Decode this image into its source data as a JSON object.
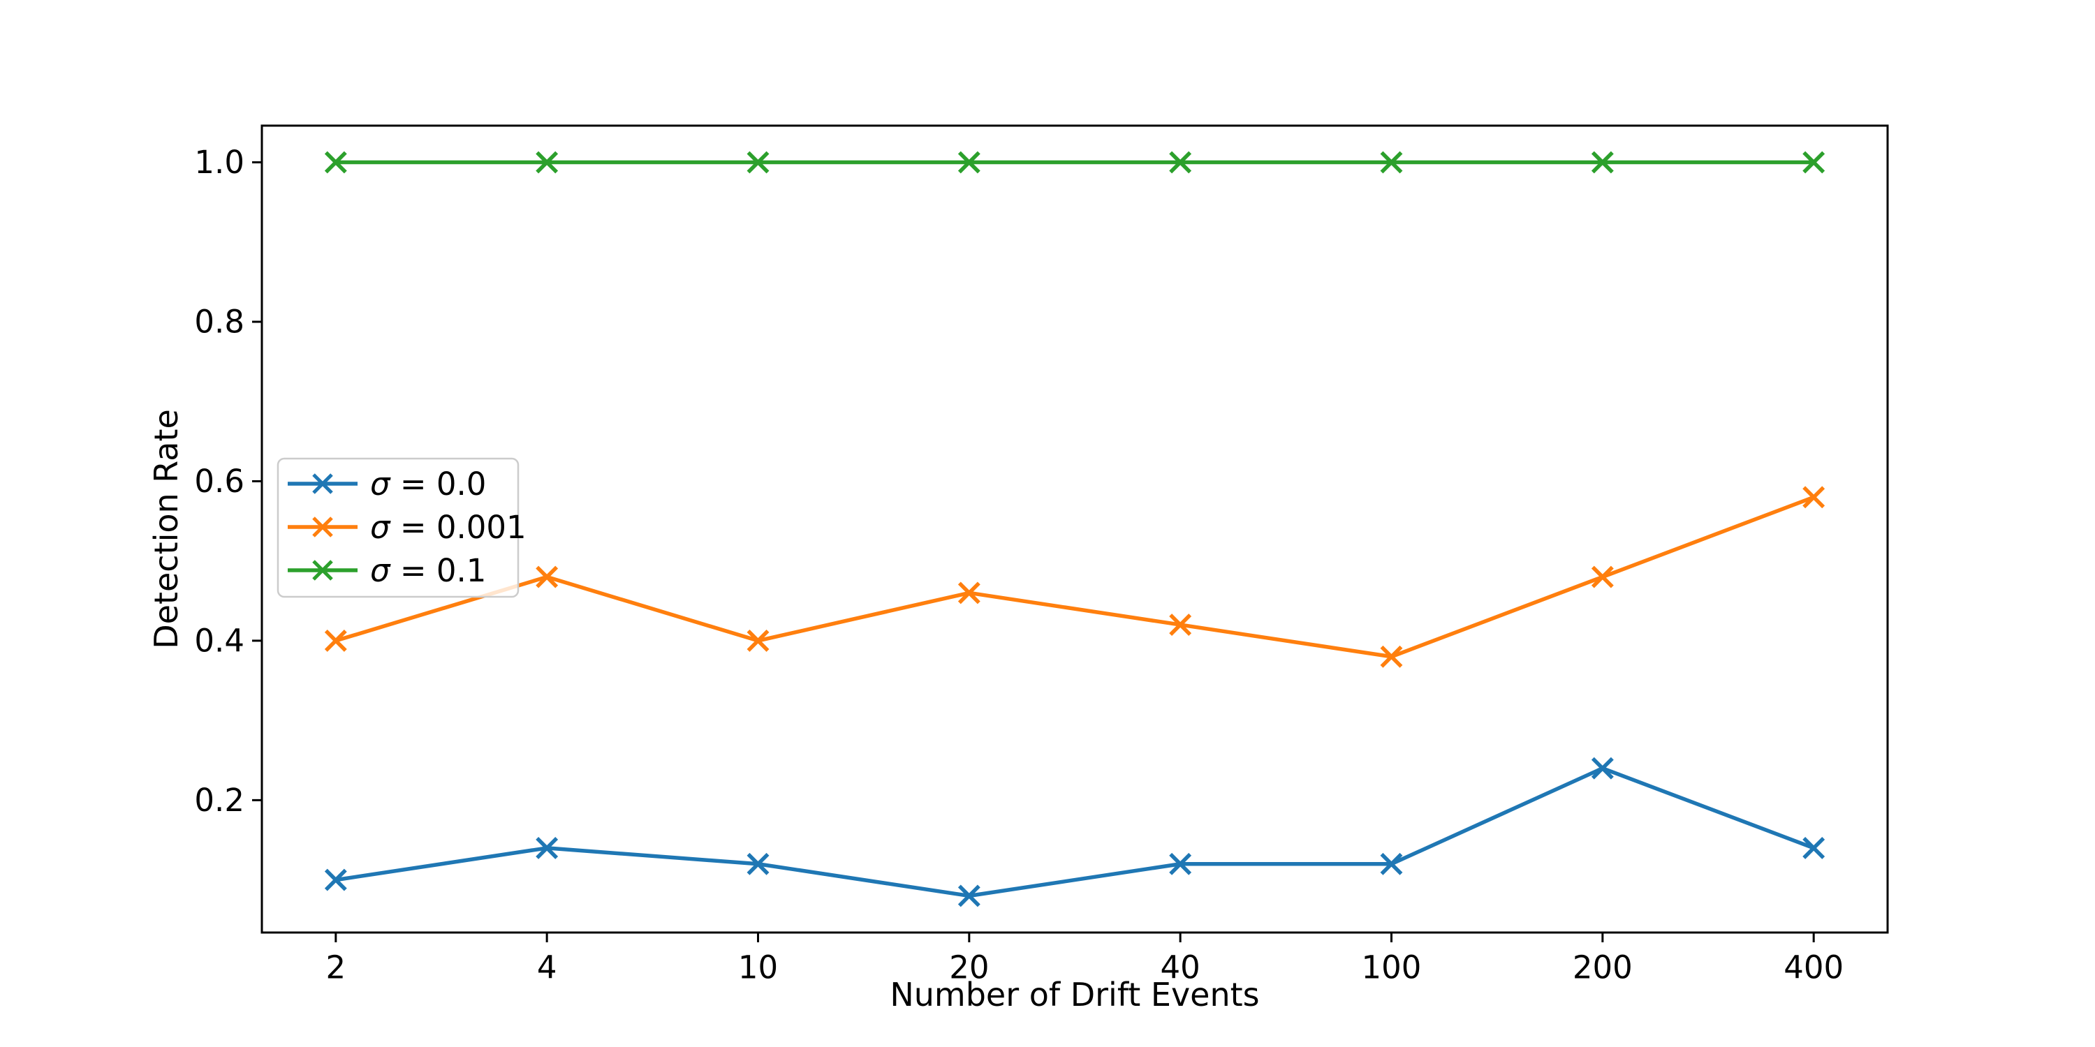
{
  "figure": {
    "background": "#ffffff",
    "text_color": "#000000",
    "axis_color": "#000000"
  },
  "chart_data": {
    "type": "line",
    "title": "",
    "xlabel": "Number of Drift Events",
    "ylabel": "Detection Rate",
    "categories": [
      "2",
      "4",
      "10",
      "20",
      "40",
      "100",
      "200",
      "400"
    ],
    "yticks": [
      "0.2",
      "0.4",
      "0.6",
      "0.8",
      "1.0"
    ],
    "ylim": [
      0.034,
      1.046
    ],
    "grid": false,
    "marker": "x",
    "legend": {
      "position": "center-left",
      "border_color": "#cccccc",
      "background": "rgba(255,255,255,0.8)"
    },
    "series": [
      {
        "name": "σ = 0.0",
        "color": "#1f77b4",
        "values": [
          0.1,
          0.14,
          0.12,
          0.08,
          0.12,
          0.12,
          0.24,
          0.14
        ]
      },
      {
        "name": "σ = 0.001",
        "color": "#ff7f0e",
        "values": [
          0.4,
          0.48,
          0.4,
          0.46,
          0.42,
          0.38,
          0.48,
          0.58
        ]
      },
      {
        "name": "σ = 0.1",
        "color": "#2ca02c",
        "values": [
          1.0,
          1.0,
          1.0,
          1.0,
          1.0,
          1.0,
          1.0,
          1.0
        ]
      }
    ]
  }
}
